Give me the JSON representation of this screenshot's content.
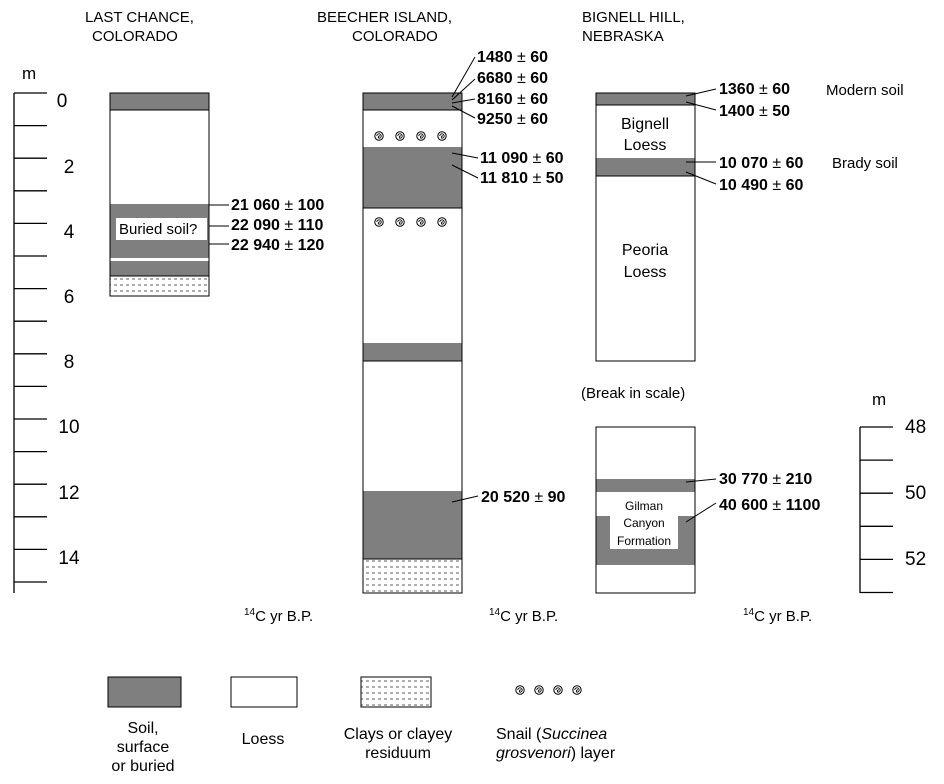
{
  "sites": {
    "last_chance": {
      "name_line1": "LAST CHANCE,",
      "name_line2": "COLORADO"
    },
    "beecher_island": {
      "name_line1": "BEECHER ISLAND,",
      "name_line2": "COLORADO"
    },
    "bignell_hill": {
      "name_line1": "BIGNELL HILL,",
      "name_line2": "NEBRASKA"
    }
  },
  "left_scale": {
    "unit": "m",
    "labels": [
      "0",
      "2",
      "4",
      "6",
      "8",
      "10",
      "12",
      "14"
    ]
  },
  "right_scale": {
    "unit": "m",
    "labels": [
      "48",
      "50",
      "52"
    ]
  },
  "pm_symbol": "±",
  "last_chance": {
    "unit_label": "Buried soil?",
    "dates": [
      {
        "age": "21 060",
        "err": "100"
      },
      {
        "age": "22 090",
        "err": "110"
      },
      {
        "age": "22 940",
        "err": "120"
      }
    ]
  },
  "beecher_island": {
    "dates_top": [
      {
        "age": "1480",
        "err": "60"
      },
      {
        "age": "6680",
        "err": "60"
      },
      {
        "age": "8160",
        "err": "60"
      },
      {
        "age": "9250",
        "err": "60"
      }
    ],
    "dates_mid": [
      {
        "age": "11 090",
        "err": "60"
      },
      {
        "age": "11 810",
        "err": "50"
      }
    ],
    "dates_low": [
      {
        "age": "20 520",
        "err": "90"
      }
    ]
  },
  "bignell_hill": {
    "upper_dates": [
      {
        "age": "1360",
        "err": "60"
      },
      {
        "age": "1400",
        "err": "50"
      }
    ],
    "modern_soil": "Modern soil",
    "bignell_loess_l1": "Bignell",
    "bignell_loess_l2": "Loess",
    "brady_dates": [
      {
        "age": "10 070",
        "err": "60"
      },
      {
        "age": "10 490",
        "err": "60"
      }
    ],
    "brady_soil": "Brady soil",
    "peoria_loess_l1": "Peoria",
    "peoria_loess_l2": "Loess",
    "break_note": "(Break in scale)",
    "lower_dates": [
      {
        "age": "30 770",
        "err": "210"
      },
      {
        "age": "40 600",
        "err": "1100"
      }
    ],
    "gilman_l1": "Gilman",
    "gilman_l2": "Canyon",
    "gilman_l3": "Formation"
  },
  "captions": {
    "sup": "14",
    "text": "C yr B.P."
  },
  "legend": {
    "soil_l1": "Soil,",
    "soil_l2": "surface",
    "soil_l3": "or buried",
    "loess": "Loess",
    "clay_l1": "Clays or clayey",
    "clay_l2": "residuum",
    "snail_l1_a": "Snail (",
    "snail_l1_b": "Succinea",
    "snail_l2_a": "grosvenori",
    "snail_l2_b": ") layer"
  },
  "colors": {
    "soil": "#7f7f7f",
    "loess": "#ffffff",
    "line": "#000000"
  }
}
